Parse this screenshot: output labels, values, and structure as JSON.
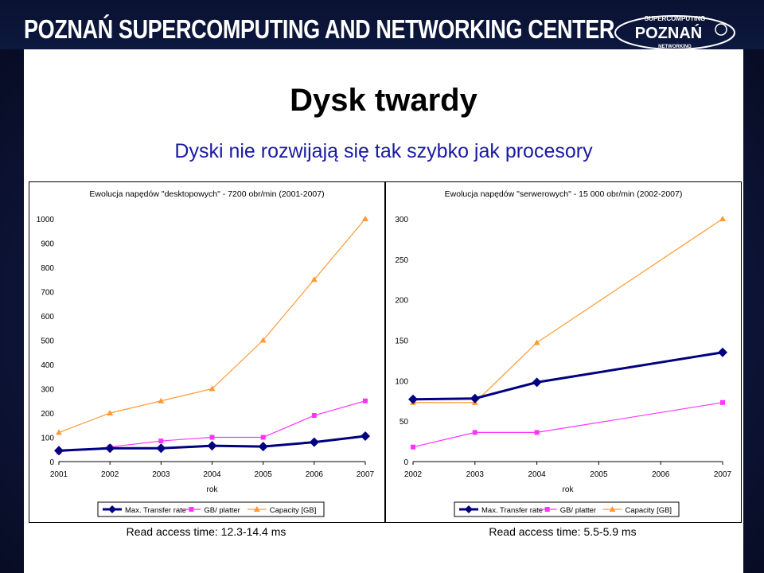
{
  "header": {
    "org_name": "POZNAŃ SUPERCOMPUTING AND NETWORKING CENTER",
    "logo_top_text": "SUPERCOMPUTING",
    "logo_main_text": "POZNAŃ",
    "logo_bottom_text": "NETWORKING"
  },
  "slide": {
    "title": "Dysk twardy",
    "subtitle": "Dyski nie rozwijają się tak szybko jak procesory"
  },
  "colors": {
    "transfer": "#000080",
    "platter": "#ff33ff",
    "capacity": "#ff9933"
  },
  "chart_data": [
    {
      "type": "line",
      "title": "Ewolucja napędów \"desktopowych\" - 7200 obr/min (2001-2007)",
      "xlabel": "rok",
      "x": [
        "2001",
        "2002",
        "2003",
        "2004",
        "2005",
        "2006",
        "2007"
      ],
      "ylim": [
        0,
        1000
      ],
      "yticks": [
        "0",
        "100",
        "200",
        "300",
        "400",
        "500",
        "600",
        "700",
        "800",
        "900",
        "1000"
      ],
      "series": [
        {
          "name": "Max. Transfer rate",
          "values": [
            45,
            55,
            55,
            65,
            62,
            80,
            105
          ]
        },
        {
          "name": "GB/ platter",
          "values": [
            40,
            60,
            85,
            100,
            100,
            190,
            250
          ]
        },
        {
          "name": "Capacity [GB]",
          "values": [
            120,
            200,
            250,
            300,
            500,
            750,
            1000
          ]
        }
      ],
      "note": "Read access time: 12.3-14.4 ms"
    },
    {
      "type": "line",
      "title": "Ewolucja napędów \"serwerowych\" - 15 000 obr/min (2002-2007)",
      "xlabel": "rok",
      "x": [
        "2002",
        "2003",
        "2004",
        "2005",
        "2006",
        "2007"
      ],
      "ylim": [
        0,
        300
      ],
      "yticks": [
        "0",
        "50",
        "100",
        "150",
        "200",
        "250",
        "300"
      ],
      "series": [
        {
          "name": "Max. Transfer rate",
          "points": [
            [
              0,
              77
            ],
            [
              1,
              78
            ],
            [
              2,
              98
            ],
            [
              5,
              135
            ]
          ]
        },
        {
          "name": "GB/ platter",
          "points": [
            [
              0,
              18
            ],
            [
              1,
              36
            ],
            [
              2,
              36
            ],
            [
              5,
              73
            ]
          ]
        },
        {
          "name": "Capacity [GB]",
          "points": [
            [
              0,
              73
            ],
            [
              1,
              73
            ],
            [
              2,
              147
            ],
            [
              5,
              300
            ]
          ]
        }
      ],
      "note": "Read access time: 5.5-5.9 ms"
    }
  ]
}
